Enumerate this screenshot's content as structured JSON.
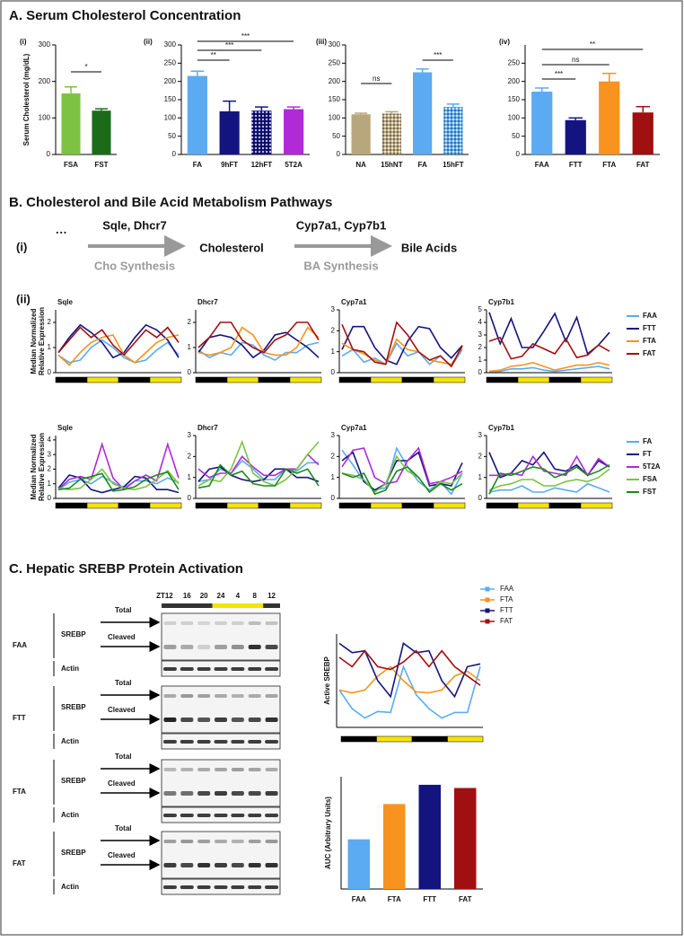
{
  "sections": {
    "a": "A. Serum Cholesterol Concentration",
    "b": "B. Cholesterol and Bile Acid Metabolism Pathways",
    "c": "C. Hepatic SREBP Protein Activation"
  },
  "pathway": {
    "label": "(i)",
    "start": "···",
    "step1_genes": "Sqle, Dhcr7",
    "step1_process": "Cho Synthesis",
    "middle": "Cholesterol",
    "step2_genes": "Cyp7a1, Cyp7b1",
    "step2_process": "BA Synthesis",
    "end": "Bile Acids",
    "panel_ii": "(ii)"
  },
  "blot": {
    "timepoints": [
      "ZT12",
      "16",
      "20",
      "24",
      "4",
      "8",
      "12"
    ],
    "groups": [
      "FAA",
      "FTT",
      "FTA",
      "FAT"
    ],
    "protein": "SREBP",
    "total": "Total",
    "cleaved": "Cleaved",
    "loading": "Actin"
  },
  "chart_data": [
    {
      "type": "bar",
      "panel": "(i)",
      "y_label": "Serum Cholesterol (mg/dL)",
      "categories": [
        "FSA",
        "FST"
      ],
      "values": [
        167,
        120
      ],
      "errors": [
        18,
        5
      ],
      "colors": [
        "#7dc242",
        "#1b6b1b"
      ],
      "ylim": [
        0,
        300
      ],
      "yticks": [
        0,
        100,
        200,
        300
      ],
      "annotations": [
        "*"
      ]
    },
    {
      "type": "bar",
      "panel": "(ii)",
      "categories": [
        "FA",
        "9hFT",
        "12hFT",
        "5T2A"
      ],
      "values": [
        215,
        118,
        120,
        124
      ],
      "errors": [
        13,
        28,
        10,
        6
      ],
      "colors": [
        "#5aabf2",
        "#141480",
        "#141480",
        "#b02ad8"
      ],
      "hatched": [
        false,
        false,
        true,
        false
      ],
      "ylim": [
        0,
        300
      ],
      "yticks": [
        0,
        50,
        100,
        150,
        200,
        250,
        300
      ],
      "annotations": [
        "***",
        "***",
        "**"
      ]
    },
    {
      "type": "bar",
      "panel": "(iii)",
      "categories": [
        "NA",
        "15hNT",
        "FA",
        "15hFT"
      ],
      "values": [
        110,
        112,
        225,
        130
      ],
      "errors": [
        3,
        5,
        9,
        8
      ],
      "colors": [
        "#b8a77c",
        "#b8a77c",
        "#5aabf2",
        "#5aabf2"
      ],
      "hatched": [
        false,
        true,
        false,
        true
      ],
      "ylim": [
        0,
        300
      ],
      "yticks": [
        0,
        50,
        100,
        150,
        200,
        250,
        300
      ],
      "annotations": [
        "ns",
        "***"
      ]
    },
    {
      "type": "bar",
      "panel": "(iv)",
      "categories": [
        "FAA",
        "FTT",
        "FTA",
        "FAT"
      ],
      "values": [
        172,
        94,
        200,
        115
      ],
      "errors": [
        10,
        6,
        22,
        16
      ],
      "colors": [
        "#5aabf2",
        "#141480",
        "#f7931e",
        "#a01010"
      ],
      "ylim": [
        0,
        300
      ],
      "yticks": [
        0,
        50,
        100,
        150,
        200,
        250
      ],
      "annotations": [
        "**",
        "ns",
        "***"
      ]
    },
    {
      "type": "line",
      "y_label": [
        "Median Normalized",
        "Relative Expression"
      ],
      "series": [
        {
          "name": "FAA",
          "color": "#5aabf2"
        },
        {
          "name": "FTT",
          "color": "#141480"
        },
        {
          "name": "FTA",
          "color": "#f7931e"
        },
        {
          "name": "FAT",
          "color": "#a01010"
        }
      ],
      "panels": [
        {
          "title": "Sqle",
          "ylim": [
            0,
            2.5
          ],
          "yticks": [
            0,
            1,
            2
          ],
          "values": [
            [
              0.7,
              0.4,
              0.5,
              1.0,
              1.3,
              1.0,
              0.6,
              0.4,
              0.5,
              0.9,
              1.2,
              0.7
            ],
            [
              0.8,
              1.4,
              1.9,
              1.6,
              1.2,
              0.6,
              0.8,
              1.4,
              1.9,
              1.7,
              1.3,
              0.6
            ],
            [
              0.7,
              0.3,
              0.8,
              1.2,
              1.4,
              1.5,
              0.7,
              0.4,
              0.8,
              1.2,
              1.4,
              1.5
            ],
            [
              0.8,
              1.3,
              1.8,
              1.4,
              1.7,
              1.1,
              0.7,
              1.2,
              1.7,
              1.4,
              1.8,
              1.2
            ]
          ]
        },
        {
          "title": "Dhcr7",
          "ylim": [
            0,
            2.5
          ],
          "yticks": [
            0,
            1,
            2
          ],
          "values": [
            [
              0.9,
              0.6,
              0.8,
              0.7,
              1.2,
              1.1,
              0.7,
              0.5,
              0.8,
              0.8,
              1.1,
              1.2
            ],
            [
              0.8,
              1.4,
              1.5,
              1.4,
              1.1,
              0.6,
              0.9,
              1.5,
              1.6,
              1.3,
              1.0,
              0.6
            ],
            [
              0.8,
              0.7,
              0.8,
              1.0,
              1.8,
              1.5,
              0.8,
              0.7,
              0.7,
              1.0,
              1.8,
              1.4
            ],
            [
              1.0,
              1.4,
              2.0,
              2.0,
              1.3,
              1.0,
              0.8,
              1.3,
              1.5,
              2.0,
              2.0,
              1.3
            ]
          ]
        },
        {
          "title": "Cyp7a1",
          "ylim": [
            0,
            3
          ],
          "yticks": [
            0,
            1,
            2,
            3
          ],
          "values": [
            [
              0.8,
              1.1,
              0.5,
              0.7,
              0.4,
              1.4,
              0.8,
              1.0,
              0.4,
              0.8,
              0.3,
              1.1
            ],
            [
              1.1,
              2.2,
              2.2,
              1.2,
              0.6,
              0.4,
              1.5,
              2.2,
              2.1,
              1.2,
              0.7,
              1.3
            ],
            [
              1.4,
              1.1,
              0.9,
              0.6,
              0.4,
              1.6,
              1.1,
              1.0,
              0.6,
              0.5,
              0.4,
              1.2
            ],
            [
              2.3,
              1.1,
              1.0,
              0.5,
              0.4,
              2.4,
              1.8,
              1.0,
              0.6,
              0.8,
              0.3,
              1.3
            ]
          ]
        },
        {
          "title": "Cyp7b1",
          "ylim": [
            0,
            5
          ],
          "yticks": [
            0,
            1,
            2,
            3,
            4,
            5
          ],
          "values": [
            [
              0.1,
              0.1,
              0.3,
              0.3,
              0.4,
              0.2,
              0.1,
              0.2,
              0.3,
              0.4,
              0.5,
              0.3
            ],
            [
              4.8,
              2.3,
              4.3,
              2.0,
              2.0,
              3.3,
              4.7,
              2.5,
              4.4,
              1.5,
              2.2,
              3.2
            ],
            [
              0.1,
              0.2,
              0.5,
              0.6,
              0.8,
              0.5,
              0.2,
              0.4,
              0.6,
              0.6,
              0.8,
              0.6
            ],
            [
              2.5,
              2.8,
              1.1,
              1.3,
              2.3,
              1.9,
              1.5,
              2.7,
              1.2,
              1.4,
              2.2,
              1.7
            ]
          ]
        }
      ]
    },
    {
      "type": "line",
      "y_label": [
        "Median Normalized",
        "Relative Expression"
      ],
      "series": [
        {
          "name": "FA",
          "color": "#5aabf2"
        },
        {
          "name": "FT",
          "color": "#141480"
        },
        {
          "name": "5T2A",
          "color": "#b02ad8"
        },
        {
          "name": "FSA",
          "color": "#7dc242"
        },
        {
          "name": "FST",
          "color": "#1b8a1b"
        }
      ],
      "panels": [
        {
          "title": "Sqle",
          "ylim": [
            0,
            4.3
          ],
          "yticks": [
            0,
            1,
            2,
            3,
            4
          ],
          "values": [
            [
              0.6,
              1.1,
              1.3,
              1.0,
              1.5,
              1.1,
              0.7,
              1.2,
              1.2,
              1.0,
              1.4,
              1.1
            ],
            [
              0.7,
              1.6,
              1.4,
              0.6,
              0.4,
              0.6,
              0.8,
              1.5,
              1.4,
              0.6,
              0.6,
              0.4
            ],
            [
              0.6,
              1.3,
              1.5,
              1.3,
              3.7,
              1.4,
              0.6,
              1.2,
              1.6,
              1.2,
              3.7,
              1.4
            ],
            [
              0.7,
              0.6,
              0.7,
              1.3,
              2.0,
              1.0,
              0.7,
              0.6,
              0.8,
              1.3,
              1.9,
              1.0
            ],
            [
              0.6,
              0.7,
              1.3,
              1.5,
              1.7,
              0.5,
              0.6,
              0.8,
              1.3,
              1.6,
              1.8,
              0.6
            ]
          ]
        },
        {
          "title": "Dhcr7",
          "ylim": [
            0,
            3
          ],
          "yticks": [
            0,
            1,
            2,
            3
          ],
          "values": [
            [
              0.8,
              0.9,
              1.4,
              1.2,
              1.8,
              1.4,
              0.9,
              0.9,
              1.4,
              1.3,
              1.7,
              1.7
            ],
            [
              0.8,
              1.4,
              1.5,
              1.1,
              0.9,
              0.8,
              0.9,
              1.4,
              1.4,
              1.0,
              1.0,
              0.8
            ],
            [
              1.4,
              1.0,
              1.2,
              1.2,
              2.0,
              1.5,
              1.1,
              1.1,
              1.4,
              1.4,
              2.1,
              1.6
            ],
            [
              0.6,
              0.9,
              0.8,
              1.4,
              2.7,
              1.2,
              0.8,
              0.6,
              0.9,
              1.4,
              2.1,
              2.7
            ],
            [
              0.5,
              0.6,
              1.6,
              1.1,
              1.3,
              0.7,
              0.6,
              0.6,
              1.4,
              1.2,
              1.4,
              0.6
            ]
          ]
        },
        {
          "title": "Cyp7a1",
          "ylim": [
            0,
            3
          ],
          "yticks": [
            0,
            1,
            2,
            3
          ],
          "values": [
            [
              2.3,
              1.6,
              0.8,
              0.4,
              0.5,
              2.4,
              1.5,
              0.8,
              0.4,
              0.8,
              0.2,
              1.2
            ],
            [
              1.8,
              2.2,
              0.8,
              0.4,
              0.7,
              1.8,
              1.8,
              2.2,
              0.6,
              0.7,
              0.6,
              1.7
            ],
            [
              1.5,
              2.3,
              2.4,
              1.0,
              0.7,
              0.8,
              1.8,
              2.4,
              0.7,
              0.8,
              1.0,
              1.3
            ],
            [
              1.2,
              1.1,
              0.9,
              0.3,
              0.7,
              2.0,
              1.3,
              1.0,
              0.3,
              0.8,
              0.7,
              1.2
            ],
            [
              1.2,
              1.0,
              1.2,
              0.2,
              0.4,
              1.3,
              1.5,
              1.0,
              0.3,
              0.7,
              0.4,
              0.7
            ]
          ]
        },
        {
          "title": "Cyp7b1",
          "ylim": [
            0,
            3
          ],
          "yticks": [
            0,
            1,
            2,
            3
          ],
          "values": [
            [
              0.3,
              0.4,
              0.4,
              0.6,
              0.3,
              0.3,
              0.5,
              0.4,
              0.3,
              0.7,
              0.5,
              0.3
            ],
            [
              2.2,
              1.0,
              1.2,
              1.8,
              1.6,
              2.2,
              1.4,
              1.3,
              1.6,
              1.1,
              1.8,
              1.5
            ],
            [
              1.1,
              1.1,
              1.2,
              1.1,
              2.0,
              1.3,
              1.2,
              1.1,
              2.0,
              1.1,
              1.9,
              1.5
            ],
            [
              0.4,
              0.6,
              0.7,
              0.9,
              0.9,
              0.6,
              0.6,
              0.8,
              0.9,
              0.8,
              1.0,
              1.4
            ],
            [
              0.2,
              1.2,
              1.1,
              1.3,
              1.5,
              1.4,
              1.0,
              1.2,
              1.5,
              1.1,
              1.3,
              1.6
            ]
          ]
        }
      ]
    },
    {
      "type": "line",
      "y_label": "Active SREBP",
      "ylim": [
        0,
        10
      ],
      "series": [
        {
          "name": "FAA",
          "color": "#5aabf2",
          "values": [
            4.0,
            2.0,
            1.0,
            1.7,
            1.6,
            6.5,
            3.5,
            2.0,
            1.0,
            1.6,
            1.6,
            6.5
          ]
        },
        {
          "name": "FTA",
          "color": "#f7931e",
          "values": [
            4.0,
            3.7,
            4.0,
            5.5,
            6.5,
            5.0,
            3.8,
            3.7,
            4.0,
            5.5,
            6.0,
            5.0
          ]
        },
        {
          "name": "FTT",
          "color": "#141480",
          "values": [
            9.0,
            8.0,
            8.2,
            5.0,
            3.3,
            9.0,
            8.0,
            8.2,
            5.0,
            3.3,
            6.5,
            6.8
          ]
        },
        {
          "name": "FAT",
          "color": "#a01010",
          "values": [
            7.5,
            6.5,
            8.2,
            6.5,
            6.2,
            7.0,
            8.2,
            6.5,
            8.2,
            6.5,
            5.5,
            4.5
          ]
        }
      ]
    },
    {
      "type": "bar",
      "y_label": "AUC (Arbitrary Units)",
      "categories": [
        "FAA",
        "FTA",
        "FTT",
        "FAT"
      ],
      "values": [
        3.1,
        5.3,
        6.5,
        6.3
      ],
      "colors": [
        "#5aabf2",
        "#f7931e",
        "#141480",
        "#a01010"
      ],
      "ylim": [
        0,
        7
      ]
    }
  ]
}
